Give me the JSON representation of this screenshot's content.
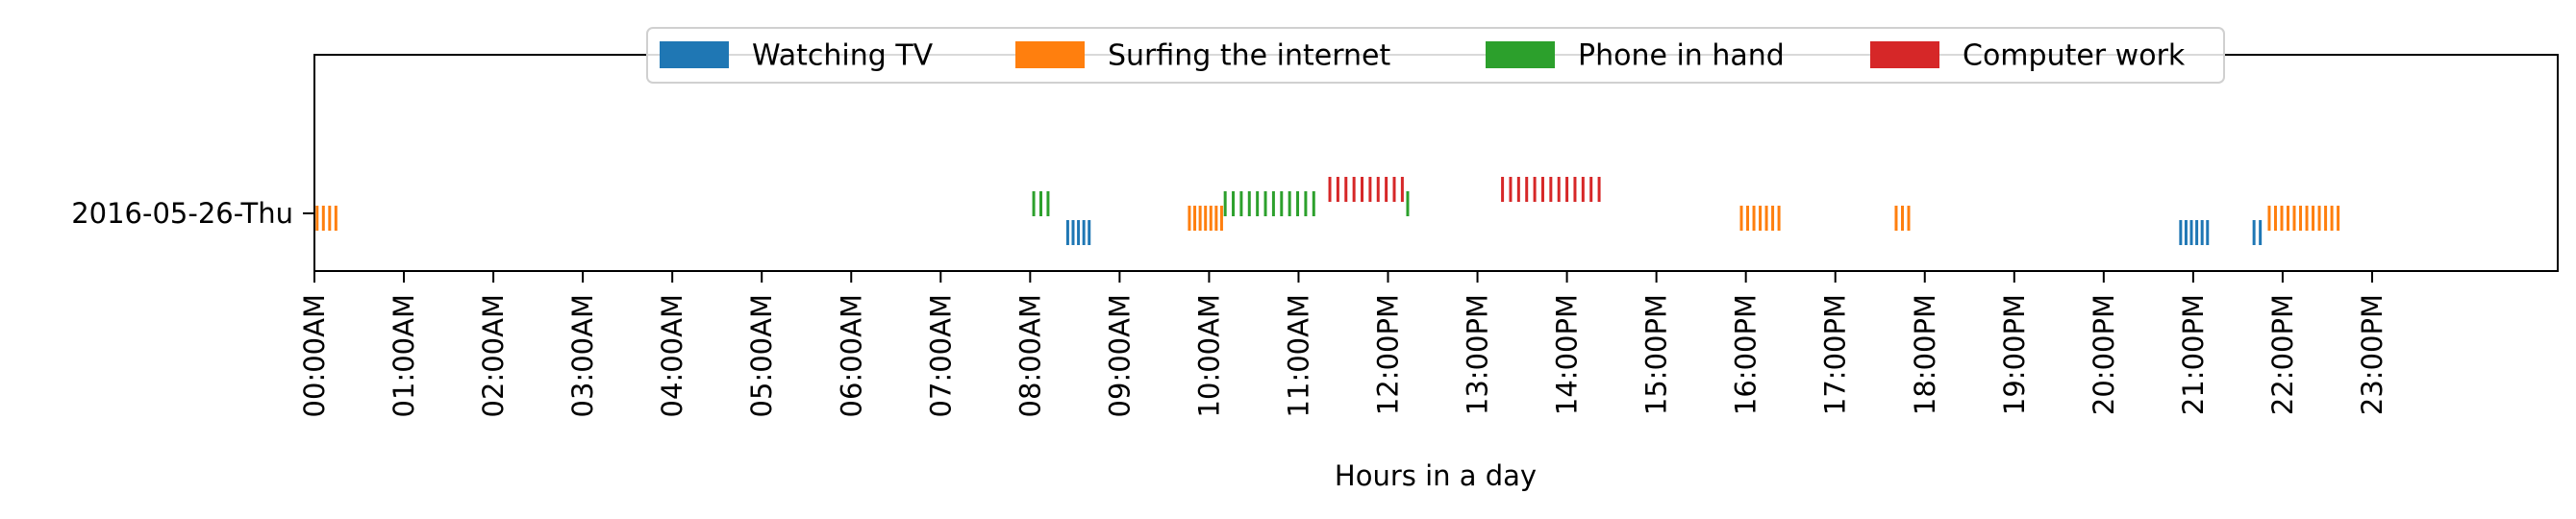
{
  "chart_data": {
    "type": "event-raster",
    "xlabel": "Hours in a day",
    "ylabel": "",
    "xlim": [
      0,
      24
    ],
    "x_tick_labels": [
      "00:00AM",
      "01:00AM",
      "02:00AM",
      "03:00AM",
      "04:00AM",
      "05:00AM",
      "06:00AM",
      "07:00AM",
      "08:00AM",
      "09:00AM",
      "10:00AM",
      "11:00AM",
      "12:00PM",
      "13:00PM",
      "14:00PM",
      "15:00PM",
      "16:00PM",
      "17:00PM",
      "18:00PM",
      "19:00PM",
      "20:00PM",
      "21:00PM",
      "22:00PM",
      "23:00PM"
    ],
    "y_tick_labels": [
      "2016-05-26-Thu"
    ],
    "legend_position": "top-center",
    "grid": false,
    "series": [
      {
        "name": "Watching TV",
        "color": "#1f77b4",
        "events": [
          8.42,
          8.48,
          8.54,
          8.6,
          8.66,
          20.86,
          20.92,
          20.98,
          21.04,
          21.1,
          21.16,
          21.68,
          21.75
        ]
      },
      {
        "name": "Surfing the internet",
        "color": "#ff7f0e",
        "events": [
          0.03,
          0.1,
          0.17,
          0.24,
          9.78,
          9.84,
          9.9,
          9.96,
          10.02,
          10.08,
          10.14,
          15.95,
          16.02,
          16.09,
          16.16,
          16.23,
          16.3,
          16.37,
          17.68,
          17.75,
          17.82,
          21.85,
          21.92,
          21.99,
          22.06,
          22.13,
          22.2,
          22.27,
          22.34,
          22.41,
          22.48,
          22.55,
          22.62
        ]
      },
      {
        "name": "Phone in hand",
        "color": "#2ca02c",
        "events": [
          8.04,
          8.12,
          8.2,
          10.18,
          10.27,
          10.36,
          10.45,
          10.54,
          10.63,
          10.72,
          10.81,
          10.9,
          10.99,
          11.08,
          11.17,
          12.22
        ]
      },
      {
        "name": "Computer work",
        "color": "#d62728",
        "events": [
          11.35,
          11.44,
          11.53,
          11.62,
          11.71,
          11.8,
          11.89,
          11.98,
          12.07,
          12.16,
          13.28,
          13.37,
          13.46,
          13.55,
          13.64,
          13.73,
          13.82,
          13.91,
          14.0,
          14.09,
          14.18,
          14.27,
          14.36
        ]
      }
    ]
  }
}
